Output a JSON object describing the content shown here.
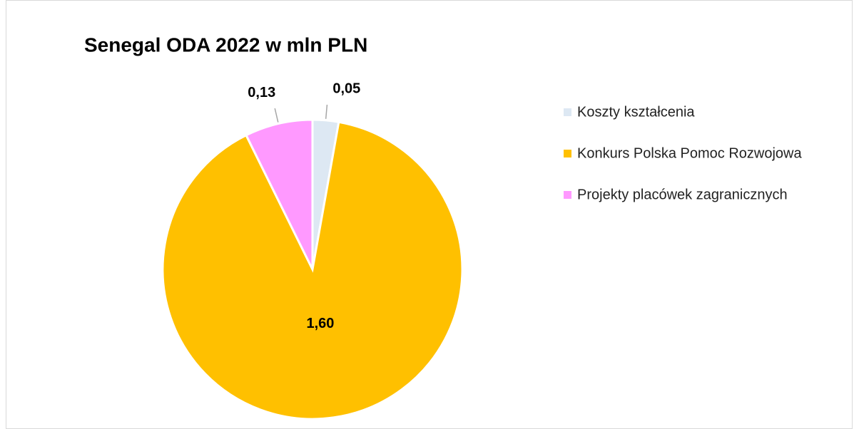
{
  "chart_data": {
    "type": "pie",
    "title": "Senegal ODA 2022 w mln PLN",
    "categories": [
      "Koszty kształcenia",
      "Konkurs Polska Pomoc Rozwojowa",
      "Projekty placówek zagranicznych"
    ],
    "values": [
      0.05,
      1.6,
      0.13
    ],
    "value_labels": [
      "0,05",
      "1,60",
      "0,13"
    ],
    "colors": [
      "#dde8f3",
      "#ffc000",
      "#ff99ff"
    ],
    "legend": "right"
  }
}
